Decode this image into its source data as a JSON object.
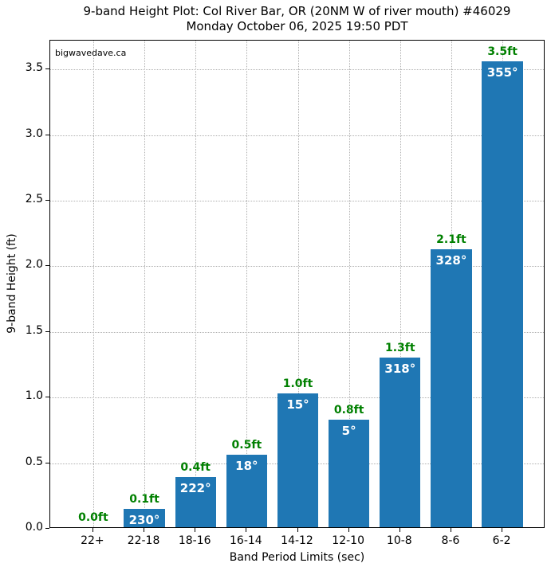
{
  "figure": {
    "watermark": "bigwavedave.ca"
  },
  "chart_data": {
    "type": "bar",
    "title": "9-band Height Plot: Col River Bar, OR (20NM W of river mouth) #46029",
    "subtitle": "Monday October 06, 2025 19:50 PDT",
    "xlabel": "Band Period Limits (sec)",
    "ylabel": "9-band Height (ft)",
    "categories": [
      "22+",
      "22-18",
      "18-16",
      "16-14",
      "14-12",
      "12-10",
      "10-8",
      "8-6",
      "6-2"
    ],
    "values": [
      0.0,
      0.14,
      0.38,
      0.55,
      1.02,
      0.82,
      1.29,
      2.12,
      3.55
    ],
    "height_labels": [
      "0.0ft",
      "0.1ft",
      "0.4ft",
      "0.5ft",
      "1.0ft",
      "0.8ft",
      "1.3ft",
      "2.1ft",
      "3.5ft"
    ],
    "direction_labels": [
      "",
      "230°",
      "222°",
      "18°",
      "15°",
      "5°",
      "318°",
      "328°",
      "355°"
    ],
    "yticks": [
      0.0,
      0.5,
      1.0,
      1.5,
      2.0,
      2.5,
      3.0,
      3.5
    ],
    "ytick_labels": [
      "0.0",
      "0.5",
      "1.0",
      "1.5",
      "2.0",
      "2.5",
      "3.0",
      "3.5"
    ],
    "ylim": [
      0,
      3.72
    ],
    "grid": true,
    "legend": null,
    "colors": {
      "bar": "#1f77b4",
      "height_label": "#008000",
      "direction_label": "#ffffff",
      "grid": "#b0b0b0",
      "axis": "#000000",
      "background": "#ffffff"
    }
  }
}
